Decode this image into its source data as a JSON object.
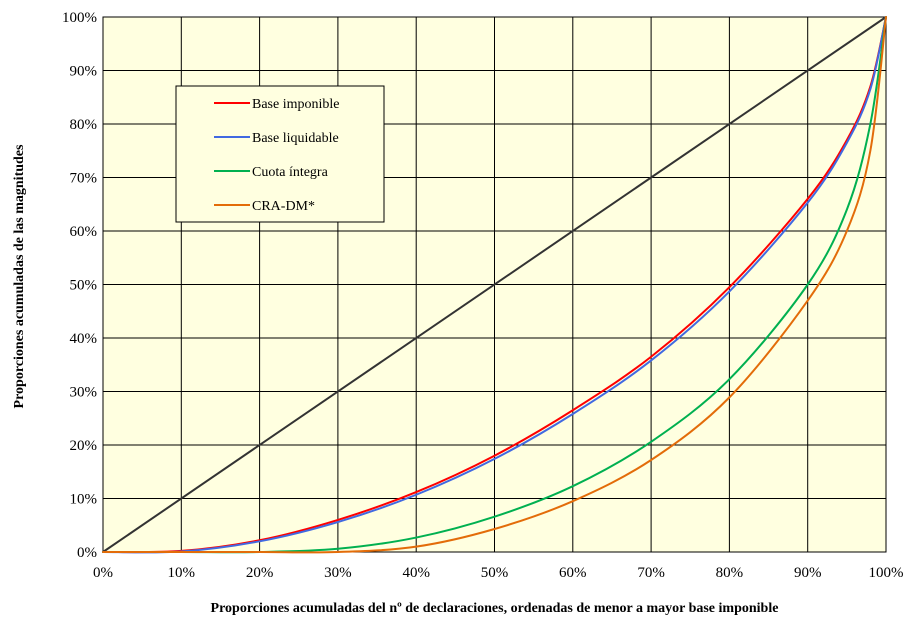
{
  "chart_data": {
    "type": "line",
    "title": "",
    "xlabel": "Proporciones acumuladas del nº de declaraciones, ordenadas de menor a mayor base imponible",
    "ylabel": "Proporciones acumuladas de las magnitudes",
    "xlim": [
      0,
      100
    ],
    "ylim": [
      0,
      100
    ],
    "x_ticks": [
      "0%",
      "10%",
      "20%",
      "30%",
      "40%",
      "50%",
      "60%",
      "70%",
      "80%",
      "90%",
      "100%"
    ],
    "y_ticks": [
      "0%",
      "10%",
      "20%",
      "30%",
      "40%",
      "50%",
      "60%",
      "70%",
      "80%",
      "90%",
      "100%"
    ],
    "grid": true,
    "background": "#ffffe0",
    "legend_position": "top-left",
    "x": [
      0,
      10,
      20,
      30,
      40,
      50,
      60,
      70,
      80,
      90,
      95,
      98,
      100
    ],
    "series": [
      {
        "name": "",
        "color": "#333333",
        "values": [
          0,
          10,
          20,
          30,
          40,
          50,
          60,
          70,
          80,
          90,
          95,
          98,
          100
        ],
        "in_legend": false
      },
      {
        "name": "Base imponible",
        "color": "#ff0000",
        "values": [
          0,
          0.2,
          2.2,
          6,
          11.2,
          18,
          26.5,
          36.5,
          49.5,
          66,
          77,
          87,
          100
        ],
        "in_legend": true
      },
      {
        "name": "Base liquidable",
        "color": "#4169e1",
        "values": [
          0,
          0.1,
          2,
          5.6,
          10.7,
          17.4,
          25.8,
          35.8,
          48.7,
          65.3,
          76.5,
          86.5,
          100
        ],
        "in_legend": true
      },
      {
        "name": "Cuota íntegra",
        "color": "#00b050",
        "values": [
          0,
          0,
          0,
          0.6,
          2.7,
          6.6,
          12.3,
          20.6,
          32.3,
          50,
          64,
          80,
          100
        ],
        "in_legend": true
      },
      {
        "name": "CRA-DM*",
        "color": "#e36c09",
        "values": [
          0,
          0,
          0,
          0,
          1,
          4.3,
          9.5,
          17.2,
          28.9,
          47,
          60,
          75,
          100
        ],
        "in_legend": true
      }
    ]
  }
}
